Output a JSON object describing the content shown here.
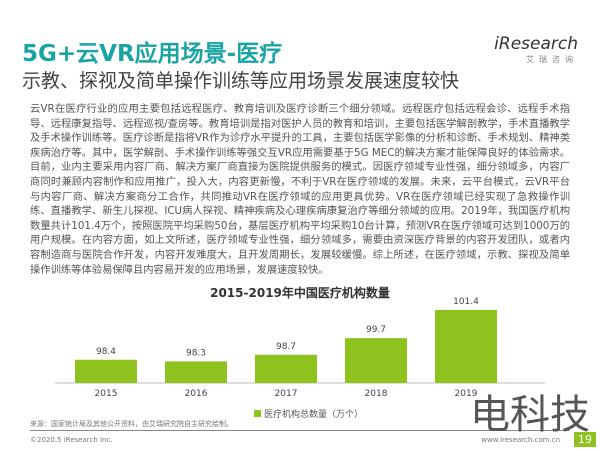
{
  "header": {
    "title": "5G+云VR应用场景-医疗",
    "subtitle": "示教、探视及简单操作训练等应用场景发展速度较快",
    "logo_main": "iResearch",
    "logo_sub": "艾瑞咨询"
  },
  "body_text": "云VR在医疗行业的应用主要包括远程医疗、教育培训及医疗诊断三个细分领域。远程医疗包括远程会诊、远程手术指导、远程康复指导、远程巡视/查房等。教育培训是指对医护人员的教育和培训，主要包括医学解剖教学，手术直播教学及手术操作训练等。医疗诊断是指将VR作为诊疗水平提升的工具，主要包括医学影像的分析和诊断、手术规划、精神类疾病治疗等。其中，医学解剖、手术操作训练等强交互VR应用需要基于5G MEC的解决方案才能保障良好的体验需求。目前，业内主要采用内容厂商、解决方案厂商直接为医院提供服务的模式。因医疗领域专业性强，细分领域多，内容厂商同时兼顾内容制作和应用推广，投入大，内容更新慢，不利于VR在医疗领域的发展。未来，云平台模式，云VR平台与内容厂商、解决方案商分工合作，共同推动VR在医疗领域的应用更具优势。VR在医疗领域已经实现了急救操作训练、直播教学、新生儿探视、ICU病人探视、精神疾病及心理疾病康复治疗等细分领域的应用。2019年，我国医疗机构数量共计101.4万个，按照医院平均采购50台，基层医疗机构平均采购10台计算，预测VR在医疗领域可达到1000万的用户规模。在内容方面，如上文所述，医疗领域专业性强，细分领域多，需要由资深医疗背景的内容开发团队，或者内容制造商与医院合作开发，内容开发难度大，且开发周期长，发展较缓慢。综上所述，在医疗领域，示教、探视及简单操作训练等体验易保障且内容易开发的应用场景，发展速度较快。",
  "chart_data": {
    "type": "bar",
    "title": "2015-2019年中国医疗机构数量",
    "categories": [
      "2015",
      "2016",
      "2017",
      "2018",
      "2019"
    ],
    "series": [
      {
        "name": "医疗机构总数量（万个）",
        "values": [
          98.4,
          98.3,
          98.7,
          99.7,
          101.4
        ]
      }
    ],
    "ylim": [
      97,
      102
    ],
    "color": "#8dc21f",
    "legend": "bottom"
  },
  "footer": {
    "source": "来源：国家统计局及其他公开资料，由艾瑞研究院自主研究绘制。",
    "copyright": "©2020.5 iResearch Inc.",
    "url": "www.iresearch.com.cn",
    "page": "19",
    "watermark": "电科技"
  }
}
